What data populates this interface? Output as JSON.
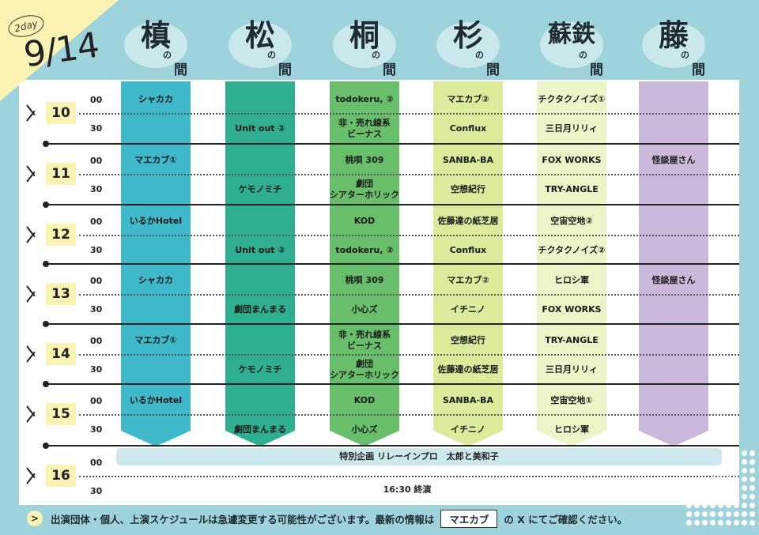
{
  "header": {
    "day_badge": "2day",
    "date": "9/14",
    "rooms": [
      {
        "name": "槙",
        "suffix_no": "の",
        "suffix_ma": "間"
      },
      {
        "name": "松",
        "suffix_no": "の",
        "suffix_ma": "間"
      },
      {
        "name": "桐",
        "suffix_no": "の",
        "suffix_ma": "間"
      },
      {
        "name": "杉",
        "suffix_no": "の",
        "suffix_ma": "間"
      },
      {
        "name": "蘇鉄",
        "suffix_no": "の",
        "suffix_ma": "間"
      },
      {
        "name": "藤",
        "suffix_no": "の",
        "suffix_ma": "間"
      }
    ]
  },
  "colors": {
    "background": "#9fd3db",
    "highlight": "#fbf3b4",
    "columns": [
      "#3fb8c9",
      "#2fae90",
      "#69be6b",
      "#dbeb9b",
      "#ebf5c8",
      "#ccb8da"
    ]
  },
  "times": {
    "hours": [
      "10",
      "11",
      "12",
      "13",
      "14",
      "15",
      "16"
    ],
    "min_00": "00",
    "min_30": "30"
  },
  "schedule": {
    "maki": [
      {
        "slot": 0,
        "text": "シャカカ"
      },
      {
        "slot": 2,
        "text": "マエカブ①"
      },
      {
        "slot": 4,
        "text": "いるかHotel"
      },
      {
        "slot": 6,
        "text": "シャカカ"
      },
      {
        "slot": 8,
        "text": "マエカブ①"
      },
      {
        "slot": 10,
        "text": "いるかHotel"
      }
    ],
    "matsu": [
      {
        "slot": 1,
        "text": "Unit out ②"
      },
      {
        "slot": 3,
        "text": "ケモノミチ"
      },
      {
        "slot": 5,
        "text": "Unit out ②"
      },
      {
        "slot": 7,
        "text": "劇団まんまる"
      },
      {
        "slot": 9,
        "text": "ケモノミチ"
      },
      {
        "slot": 11,
        "text": "劇団まんまる"
      }
    ],
    "kiri": [
      {
        "slot": 0,
        "text": "todokeru, ②"
      },
      {
        "slot": 1,
        "text": "非・売れ線系\nビーナス"
      },
      {
        "slot": 2,
        "text": "桃唄 309"
      },
      {
        "slot": 3,
        "text": "劇団\nシアターホリック"
      },
      {
        "slot": 4,
        "text": "KOD"
      },
      {
        "slot": 5,
        "text": "todokeru, ②"
      },
      {
        "slot": 6,
        "text": "桃唄 309"
      },
      {
        "slot": 7,
        "text": "小心ズ"
      },
      {
        "slot": 8,
        "text": "非・売れ線系\nビーナス"
      },
      {
        "slot": 9,
        "text": "劇団\nシアターホリック"
      },
      {
        "slot": 10,
        "text": "KOD"
      },
      {
        "slot": 11,
        "text": "小心ズ"
      }
    ],
    "sugi": [
      {
        "slot": 0,
        "text": "マエカブ②"
      },
      {
        "slot": 1,
        "text": "Conflux"
      },
      {
        "slot": 2,
        "text": "SANBA-BA"
      },
      {
        "slot": 3,
        "text": "空想紀行"
      },
      {
        "slot": 4,
        "text": "佐藤達の紙芝居"
      },
      {
        "slot": 5,
        "text": "Conflux"
      },
      {
        "slot": 6,
        "text": "マエカブ②"
      },
      {
        "slot": 7,
        "text": "イチニノ"
      },
      {
        "slot": 8,
        "text": "空想紀行"
      },
      {
        "slot": 9,
        "text": "佐藤達の紙芝居"
      },
      {
        "slot": 10,
        "text": "SANBA-BA"
      },
      {
        "slot": 11,
        "text": "イチニノ"
      }
    ],
    "sotetsu": [
      {
        "slot": 0,
        "text": "チクタクノイズ①"
      },
      {
        "slot": 1,
        "text": "三日月リリィ"
      },
      {
        "slot": 2,
        "text": "FOX WORKS"
      },
      {
        "slot": 3,
        "text": "TRY-ANGLE"
      },
      {
        "slot": 4,
        "text": "空宙空地②"
      },
      {
        "slot": 5,
        "text": "チクタクノイズ②"
      },
      {
        "slot": 6,
        "text": "ヒロシ軍"
      },
      {
        "slot": 7,
        "text": "FOX WORKS"
      },
      {
        "slot": 8,
        "text": "TRY-ANGLE"
      },
      {
        "slot": 9,
        "text": "三日月リリィ"
      },
      {
        "slot": 10,
        "text": "空宙空地①"
      },
      {
        "slot": 11,
        "text": "ヒロシ軍"
      }
    ],
    "fuji": [
      {
        "slot": 2,
        "text": "怪談屋さん"
      },
      {
        "slot": 6,
        "text": "怪談屋さん"
      }
    ]
  },
  "special_event": "特別企画 リレーインプロ　太郎と美和子",
  "end_text": "16:30 終演",
  "footer": {
    "arrow": ">",
    "text_before": "出演団体・個人、上演スケジュールは急遽変更する可能性がございます。最新の情報は",
    "box_label": "マエカブ",
    "text_after": "の X にてご確認ください。"
  }
}
